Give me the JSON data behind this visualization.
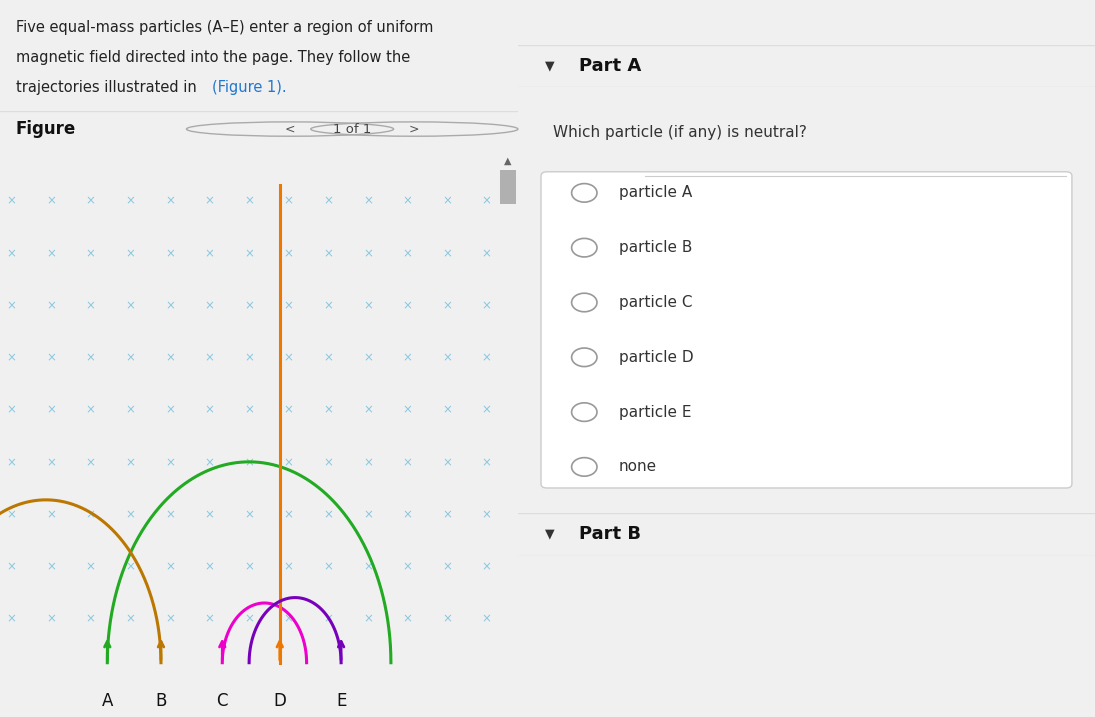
{
  "problem_text_line1": "Five equal-mass particles (A–E) enter a region of uniform",
  "problem_text_line2": "magnetic field directed into the page. They follow the",
  "problem_text_line3": "trajectories illustrated in  ",
  "figure1_link": "(Figure 1).",
  "figure_label": "Figure",
  "nav_text": "1 of 1",
  "part_a_header": "Part A",
  "part_a_question": "Which particle (if any) is neutral?",
  "part_a_options": [
    "particle A",
    "particle B",
    "particle C",
    "particle D",
    "particle E",
    "none"
  ],
  "part_b_header": "Part B",
  "bg_color_problem": "#e0f0f4",
  "bg_color_fig_nav": "#ffffff",
  "bg_color_figure": "#ffffff",
  "bg_color_right": "#f8f8f8",
  "bg_color_partA_content": "#ffffff",
  "bg_color_gray_header": "#f0f0f0",
  "particle_labels": [
    "A",
    "B",
    "C",
    "D",
    "E"
  ],
  "particle_colors": [
    "#22aa22",
    "#bb7700",
    "#ee00cc",
    "#ee7700",
    "#7700bb"
  ],
  "grid_color": "#88c8e0",
  "grid_rows": 9,
  "grid_cols": 13,
  "scrollbar_color": "#c8c8c8",
  "separator_color": "#dddddd",
  "text_color": "#222222",
  "link_color": "#2277cc",
  "radio_color": "#888888",
  "option_text_color": "#333333"
}
